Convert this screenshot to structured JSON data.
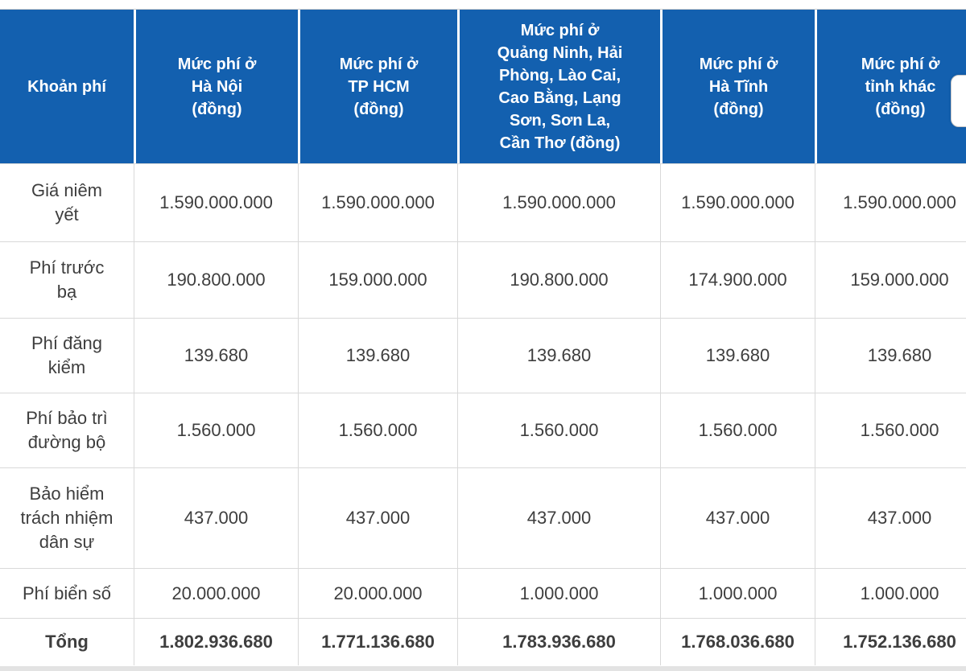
{
  "colors": {
    "header_bg": "#1360AF",
    "header_text": "#FFFFFF",
    "body_text": "#3E3E3E",
    "grid_border": "#D9D9D9",
    "bottom_strip": "#E3E3E3"
  },
  "table": {
    "header": [
      "Khoản phí",
      "Mức phí ở\nHà Nội\n(đồng)",
      "Mức phí ở\nTP HCM\n(đồng)",
      "Mức phí ở\nQuảng Ninh, Hải\nPhòng, Lào Cai,\nCao Bằng, Lạng\nSơn, Sơn La,\nCần Thơ (đồng)",
      "Mức phí ở\nHà Tĩnh\n(đồng)",
      "Mức phí ở\ntỉnh khác\n(đồng)"
    ],
    "rows": [
      {
        "label": "Giá niêm\nyết",
        "values": [
          "1.590.000.000",
          "1.590.000.000",
          "1.590.000.000",
          "1.590.000.000",
          "1.590.000.000"
        ]
      },
      {
        "label": "Phí trước\nbạ",
        "values": [
          "190.800.000",
          "159.000.000",
          "190.800.000",
          "174.900.000",
          "159.000.000"
        ]
      },
      {
        "label": "Phí đăng\nkiểm",
        "values": [
          "139.680",
          "139.680",
          "139.680",
          "139.680",
          "139.680"
        ]
      },
      {
        "label": "Phí bảo trì\nđường bộ",
        "values": [
          "1.560.000",
          "1.560.000",
          "1.560.000",
          "1.560.000",
          "1.560.000"
        ]
      },
      {
        "label": "Bảo hiểm\ntrách nhiệm\ndân sự",
        "values": [
          "437.000",
          "437.000",
          "437.000",
          "437.000",
          "437.000"
        ]
      },
      {
        "label": "Phí biển số",
        "values": [
          "20.000.000",
          "20.000.000",
          "1.000.000",
          "1.000.000",
          "1.000.000"
        ]
      },
      {
        "label": "Tổng",
        "values": [
          "1.802.936.680",
          "1.771.136.680",
          "1.783.936.680",
          "1.768.036.680",
          "1.752.136.680"
        ]
      }
    ]
  }
}
